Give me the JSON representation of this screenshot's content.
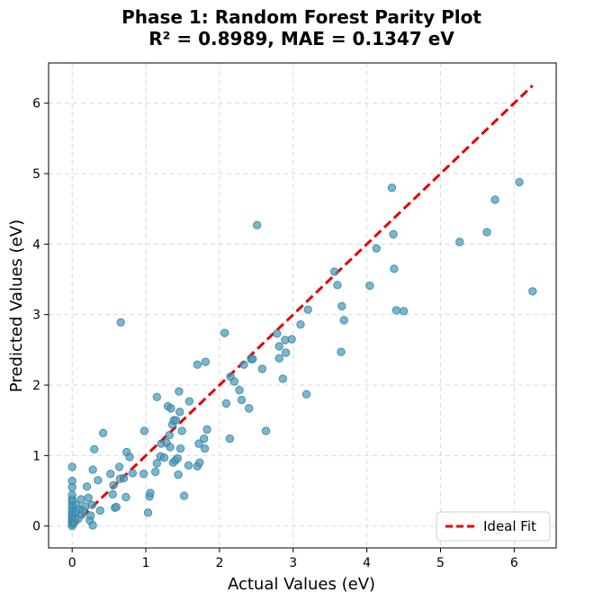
{
  "chart_data": {
    "type": "scatter",
    "title_line1": "Phase 1: Random Forest Parity Plot",
    "title_line2": "R² = 0.8989, MAE = 0.1347 eV",
    "xlabel": "Actual Values (eV)",
    "ylabel": "Predicted Values (eV)",
    "xlim": [
      -0.32,
      6.57
    ],
    "ylim": [
      -0.31,
      6.57
    ],
    "xticks": [
      0,
      1,
      2,
      3,
      4,
      5,
      6
    ],
    "yticks": [
      0,
      1,
      2,
      3,
      4,
      5,
      6
    ],
    "xtick_labels": [
      "0",
      "1",
      "2",
      "3",
      "4",
      "5",
      "6"
    ],
    "ytick_labels": [
      "0",
      "1",
      "2",
      "3",
      "4",
      "5",
      "6"
    ],
    "grid": true,
    "legend": {
      "position": "lower-right",
      "entries": [
        {
          "label": "Ideal Fit",
          "color": "#e60000",
          "style": "dashed"
        }
      ]
    },
    "ideal_line": {
      "from": [
        0,
        0
      ],
      "to": [
        6.25,
        6.25
      ],
      "color": "#e60000"
    },
    "marker_color": "#4a9aba",
    "marker_edge_color": "#2f7f9e",
    "points": [
      [
        0,
        0
      ],
      [
        0,
        0.03
      ],
      [
        0,
        0.06
      ],
      [
        0,
        0.09
      ],
      [
        0,
        0.12
      ],
      [
        0,
        0.15
      ],
      [
        0,
        0.18
      ],
      [
        0,
        0.21
      ],
      [
        0,
        0.25
      ],
      [
        0,
        0.3
      ],
      [
        0,
        0.35
      ],
      [
        0,
        0.38
      ],
      [
        0,
        0.44
      ],
      [
        0,
        0.55
      ],
      [
        0,
        0.64
      ],
      [
        0,
        0.84
      ],
      [
        0.03,
        0.05
      ],
      [
        0.04,
        0.12
      ],
      [
        0.05,
        0.2
      ],
      [
        0.06,
        0.3
      ],
      [
        0.08,
        0.1
      ],
      [
        0.1,
        0.24
      ],
      [
        0.12,
        0.38
      ],
      [
        0.13,
        0.16
      ],
      [
        0.15,
        0.22
      ],
      [
        0.18,
        0.28
      ],
      [
        0.2,
        0.56
      ],
      [
        0.22,
        0.4
      ],
      [
        0.24,
        0.08
      ],
      [
        0.25,
        0.15
      ],
      [
        0.27,
        0.3
      ],
      [
        0.28,
        0.01
      ],
      [
        0.28,
        0.8
      ],
      [
        0.3,
        1.09
      ],
      [
        0.35,
        0.65
      ],
      [
        0.38,
        0.22
      ],
      [
        0.42,
        1.32
      ],
      [
        0.52,
        0.74
      ],
      [
        0.55,
        0.45
      ],
      [
        0.56,
        0.58
      ],
      [
        0.58,
        0.26
      ],
      [
        0.6,
        0.27
      ],
      [
        0.64,
        0.84
      ],
      [
        0.65,
        0.67
      ],
      [
        0.66,
        2.89
      ],
      [
        0.7,
        0.68
      ],
      [
        0.73,
        0.41
      ],
      [
        0.74,
        1.05
      ],
      [
        0.78,
        0.98
      ],
      [
        0.82,
        0.75
      ],
      [
        0.97,
        0.74
      ],
      [
        0.98,
        1.35
      ],
      [
        1.03,
        0.19
      ],
      [
        1.05,
        0.42
      ],
      [
        1.06,
        0.47
      ],
      [
        1.13,
        0.77
      ],
      [
        1.15,
        0.89
      ],
      [
        1.15,
        1.83
      ],
      [
        1.2,
        0.99
      ],
      [
        1.21,
        1.17
      ],
      [
        1.25,
        0.97
      ],
      [
        1.28,
        1.18
      ],
      [
        1.3,
        1.7
      ],
      [
        1.32,
        1.29
      ],
      [
        1.33,
        1.12
      ],
      [
        1.34,
        1.67
      ],
      [
        1.36,
        1.44
      ],
      [
        1.37,
        0.9
      ],
      [
        1.38,
        1.5
      ],
      [
        1.4,
        0.93
      ],
      [
        1.41,
        1.5
      ],
      [
        1.43,
        0.96
      ],
      [
        1.44,
        0.73
      ],
      [
        1.45,
        1.91
      ],
      [
        1.46,
        1.62
      ],
      [
        1.47,
        1.1
      ],
      [
        1.49,
        1.35
      ],
      [
        1.52,
        0.43
      ],
      [
        1.58,
        0.86
      ],
      [
        1.59,
        1.77
      ],
      [
        1.7,
        2.29
      ],
      [
        1.7,
        0.85
      ],
      [
        1.72,
        1.17
      ],
      [
        1.73,
        0.9
      ],
      [
        1.79,
        1.24
      ],
      [
        1.8,
        1.1
      ],
      [
        1.81,
        2.33
      ],
      [
        1.83,
        1.37
      ],
      [
        2.07,
        2.74
      ],
      [
        2.09,
        1.74
      ],
      [
        2.14,
        1.24
      ],
      [
        2.15,
        2.12
      ],
      [
        2.2,
        2.05
      ],
      [
        2.27,
        1.93
      ],
      [
        2.3,
        1.79
      ],
      [
        2.33,
        2.29
      ],
      [
        2.4,
        1.67
      ],
      [
        2.43,
        2.37
      ],
      [
        2.45,
        2.37
      ],
      [
        2.51,
        4.27
      ],
      [
        2.58,
        2.23
      ],
      [
        2.63,
        1.35
      ],
      [
        2.78,
        2.73
      ],
      [
        2.81,
        2.55
      ],
      [
        2.81,
        2.38
      ],
      [
        2.86,
        2.09
      ],
      [
        2.89,
        2.64
      ],
      [
        2.9,
        2.46
      ],
      [
        2.98,
        2.65
      ],
      [
        3.1,
        2.86
      ],
      [
        3.18,
        1.87
      ],
      [
        3.2,
        3.07
      ],
      [
        3.56,
        3.61
      ],
      [
        3.6,
        3.42
      ],
      [
        3.65,
        2.47
      ],
      [
        3.66,
        3.12
      ],
      [
        3.69,
        2.92
      ],
      [
        4.04,
        3.41
      ],
      [
        4.13,
        3.94
      ],
      [
        4.34,
        4.8
      ],
      [
        4.36,
        4.14
      ],
      [
        4.37,
        3.65
      ],
      [
        4.4,
        3.06
      ],
      [
        4.5,
        3.05
      ],
      [
        5.26,
        4.03
      ],
      [
        5.63,
        4.17
      ],
      [
        5.74,
        4.63
      ],
      [
        6.07,
        4.88
      ],
      [
        6.25,
        3.33
      ]
    ]
  }
}
